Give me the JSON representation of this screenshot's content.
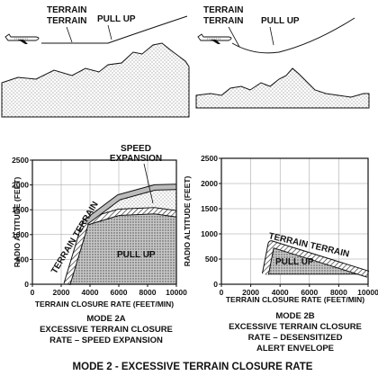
{
  "figure": {
    "title": "MODE 2 - EXCESSIVE TERRAIN CLOSURE RATE"
  },
  "scene_a": {
    "label_terrain": "TERRAIN",
    "label_terrain2": "TERRAIN",
    "label_pullup": "PULL UP"
  },
  "scene_b": {
    "label_terrain": "TERRAIN",
    "label_terrain2": "TERRAIN",
    "label_pullup": "PULL UP"
  },
  "chart_a": {
    "callout": [
      "SPEED",
      "EXPANSION"
    ],
    "band_label": "TERRAIN TERRAIN",
    "area_label": "PULL UP",
    "caption": [
      "MODE 2A",
      "EXCESSIVE TERRAIN CLOSURE",
      "RATE – SPEED EXPANSION"
    ]
  },
  "chart_b": {
    "band_label": "TERRAIN TERRAIN",
    "area_label": "PULL UP",
    "caption": [
      "MODE 2B",
      "EXCESSIVE TERRAIN CLOSURE",
      "RATE – DESENSITIZED",
      "ALERT ENVELOPE"
    ]
  },
  "axes": {
    "xlabel": "TERRAIN CLOSURE RATE (FEET/MIN)",
    "ylabel": "RADIO ALTITUDE (FEET)",
    "xticks": [
      "0",
      "2000",
      "4000",
      "6000",
      "8000",
      "10000"
    ],
    "yticks": [
      "0",
      "500",
      "1000",
      "1500",
      "2000",
      "2500"
    ]
  },
  "chart_data": [
    {
      "type": "area",
      "name": "MODE 2A",
      "xlim": [
        0,
        10000
      ],
      "ylim": [
        0,
        2500
      ],
      "series": [
        {
          "name": "TERRAIN TERRAIN",
          "x": [
            2400,
            3700,
            6000,
            8500,
            10000
          ],
          "y": [
            0,
            1250,
            1450,
            1480,
            1420
          ]
        },
        {
          "name": "SPEED EXPANSION",
          "x": [
            3700,
            6000,
            8500,
            10000
          ],
          "y": [
            1250,
            1750,
            1950,
            1960
          ]
        }
      ]
    },
    {
      "type": "area",
      "name": "MODE 2B",
      "xlim": [
        0,
        10000
      ],
      "ylim": [
        0,
        2500
      ],
      "series": [
        {
          "name": "TERRAIN TERRAIN",
          "x": [
            3000,
            3400,
            10000
          ],
          "y": [
            200,
            800,
            200
          ]
        }
      ]
    }
  ]
}
